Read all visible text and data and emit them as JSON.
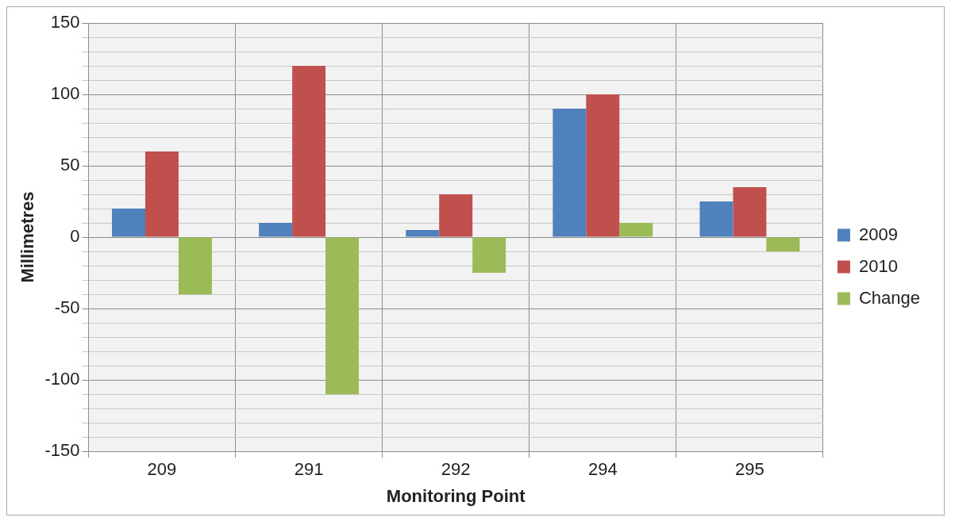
{
  "chart_data": {
    "type": "bar",
    "xlabel": "Monitoring Point",
    "ylabel": "Millimetres",
    "categories": [
      "209",
      "291",
      "292",
      "294",
      "295"
    ],
    "series": [
      {
        "name": "2009",
        "color": "#4f81bd",
        "values": [
          20,
          10,
          5,
          90,
          25
        ]
      },
      {
        "name": "2010",
        "color": "#c0504d",
        "values": [
          60,
          120,
          30,
          100,
          35
        ]
      },
      {
        "name": "Change",
        "color": "#9bbb59",
        "values": [
          -40,
          -110,
          -25,
          10,
          -10
        ]
      }
    ],
    "ylim": [
      -150,
      150
    ],
    "yticks": [
      -150,
      {
        "value": -140,
        "label": null
      },
      {
        "value": -130,
        "label": null
      },
      {
        "value": -120,
        "label": null
      },
      {
        "value": -110,
        "label": null
      },
      -100,
      {
        "value": -90,
        "label": null
      },
      {
        "value": -80,
        "label": null
      },
      {
        "value": -70,
        "label": null
      },
      {
        "value": -60,
        "label": null
      },
      -50,
      {
        "value": -40,
        "label": null
      },
      {
        "value": -30,
        "label": null
      },
      {
        "value": -20,
        "label": null
      },
      {
        "value": -10,
        "label": null
      },
      0,
      {
        "value": 10,
        "label": null
      },
      {
        "value": 20,
        "label": null
      },
      {
        "value": 30,
        "label": null
      },
      {
        "value": 40,
        "label": null
      },
      50,
      {
        "value": 60,
        "label": null
      },
      {
        "value": 70,
        "label": null
      },
      {
        "value": 80,
        "label": null
      },
      {
        "value": 90,
        "label": null
      },
      100,
      {
        "value": 110,
        "label": null
      },
      {
        "value": 120,
        "label": null
      },
      {
        "value": 130,
        "label": null
      },
      {
        "value": 140,
        "label": null
      },
      150
    ],
    "grid": true,
    "legend": "right"
  }
}
